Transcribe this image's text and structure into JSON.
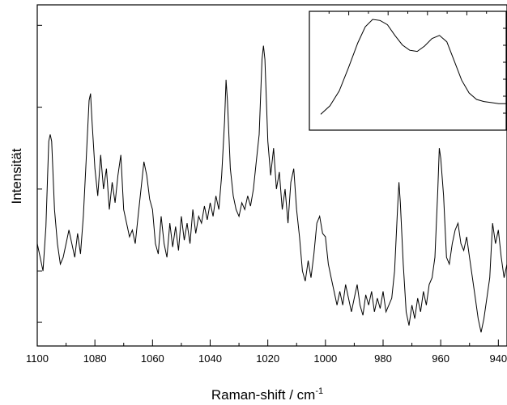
{
  "chart_data": [
    {
      "type": "line",
      "xlabel": "Raman-shift / cm",
      "xlabel_sup": "-1",
      "ylabel": "Intensität",
      "xlim": [
        1100,
        937
      ],
      "ylim": [
        0,
        100
      ],
      "x_reversed": true,
      "x_ticks": [
        "1100",
        "1080",
        "1060",
        "1040",
        "1020",
        "1000",
        "980",
        "960",
        "940"
      ],
      "y_ticks_unlabeled": [
        7,
        22,
        46,
        70,
        94
      ],
      "grid": false,
      "legend": "none",
      "series": [
        {
          "values": [
            [
              1100,
              30
            ],
            [
              1099,
              26
            ],
            [
              1098,
              22
            ],
            [
              1097,
              35
            ],
            [
              1096,
              60
            ],
            [
              1095.5,
              62
            ],
            [
              1095,
              60
            ],
            [
              1094,
              40
            ],
            [
              1093,
              30
            ],
            [
              1092,
              24
            ],
            [
              1091,
              26
            ],
            [
              1090,
              30
            ],
            [
              1089,
              34
            ],
            [
              1088,
              30
            ],
            [
              1087,
              26
            ],
            [
              1086,
              33
            ],
            [
              1085,
              27
            ],
            [
              1084,
              38
            ],
            [
              1083,
              55
            ],
            [
              1082,
              72
            ],
            [
              1081.5,
              74
            ],
            [
              1081,
              66
            ],
            [
              1080,
              52
            ],
            [
              1079,
              44
            ],
            [
              1078,
              56
            ],
            [
              1077,
              46
            ],
            [
              1076,
              52
            ],
            [
              1075,
              40
            ],
            [
              1074,
              48
            ],
            [
              1073,
              42
            ],
            [
              1072,
              50
            ],
            [
              1071,
              56
            ],
            [
              1070,
              40
            ],
            [
              1069,
              36
            ],
            [
              1068,
              32
            ],
            [
              1067,
              34
            ],
            [
              1066,
              30
            ],
            [
              1065,
              38
            ],
            [
              1064,
              46
            ],
            [
              1063,
              54
            ],
            [
              1062,
              50
            ],
            [
              1061,
              43
            ],
            [
              1060,
              40
            ],
            [
              1059,
              30
            ],
            [
              1058,
              27
            ],
            [
              1057,
              38
            ],
            [
              1056,
              30
            ],
            [
              1055,
              26
            ],
            [
              1054,
              36
            ],
            [
              1053,
              29
            ],
            [
              1052,
              35
            ],
            [
              1051,
              28
            ],
            [
              1050,
              38
            ],
            [
              1049,
              31
            ],
            [
              1048,
              36
            ],
            [
              1047,
              30
            ],
            [
              1046,
              40
            ],
            [
              1045,
              33
            ],
            [
              1044,
              38
            ],
            [
              1043,
              36
            ],
            [
              1042,
              41
            ],
            [
              1041,
              37
            ],
            [
              1040,
              42
            ],
            [
              1039,
              38
            ],
            [
              1038,
              44
            ],
            [
              1037,
              40
            ],
            [
              1036,
              50
            ],
            [
              1035,
              66
            ],
            [
              1034.5,
              78
            ],
            [
              1034,
              72
            ],
            [
              1033,
              52
            ],
            [
              1032,
              44
            ],
            [
              1031,
              40
            ],
            [
              1030,
              38
            ],
            [
              1029,
              42
            ],
            [
              1028,
              40
            ],
            [
              1027,
              44
            ],
            [
              1026,
              41
            ],
            [
              1025,
              46
            ],
            [
              1024,
              54
            ],
            [
              1023,
              62
            ],
            [
              1022,
              84
            ],
            [
              1021.5,
              88
            ],
            [
              1021,
              84
            ],
            [
              1020,
              60
            ],
            [
              1019,
              50
            ],
            [
              1018,
              58
            ],
            [
              1017,
              46
            ],
            [
              1016,
              51
            ],
            [
              1015,
              40
            ],
            [
              1014,
              46
            ],
            [
              1013,
              36
            ],
            [
              1012,
              48
            ],
            [
              1011,
              52
            ],
            [
              1010,
              40
            ],
            [
              1009,
              32
            ],
            [
              1008,
              22
            ],
            [
              1007,
              19
            ],
            [
              1006,
              25
            ],
            [
              1005,
              20
            ],
            [
              1004,
              27
            ],
            [
              1003,
              36
            ],
            [
              1002,
              38
            ],
            [
              1001,
              33
            ],
            [
              1000,
              32
            ],
            [
              999,
              24
            ],
            [
              998,
              20
            ],
            [
              997,
              16
            ],
            [
              996,
              12
            ],
            [
              995,
              16
            ],
            [
              994,
              12
            ],
            [
              993,
              18
            ],
            [
              992,
              14
            ],
            [
              991,
              10
            ],
            [
              990,
              14
            ],
            [
              989,
              18
            ],
            [
              988,
              12
            ],
            [
              987,
              9
            ],
            [
              986,
              15
            ],
            [
              985,
              12
            ],
            [
              984,
              16
            ],
            [
              983,
              10
            ],
            [
              982,
              14
            ],
            [
              981,
              11
            ],
            [
              980,
              16
            ],
            [
              979,
              10
            ],
            [
              978,
              12
            ],
            [
              977,
              14
            ],
            [
              976,
              22
            ],
            [
              975,
              40
            ],
            [
              974.5,
              48
            ],
            [
              974,
              42
            ],
            [
              973,
              24
            ],
            [
              972,
              10
            ],
            [
              971,
              6
            ],
            [
              970,
              12
            ],
            [
              969,
              8
            ],
            [
              968,
              14
            ],
            [
              967,
              10
            ],
            [
              966,
              16
            ],
            [
              965,
              12
            ],
            [
              964,
              18
            ],
            [
              963,
              20
            ],
            [
              962,
              26
            ],
            [
              961,
              46
            ],
            [
              960.5,
              58
            ],
            [
              960,
              55
            ],
            [
              959,
              44
            ],
            [
              958,
              26
            ],
            [
              957,
              24
            ],
            [
              956,
              30
            ],
            [
              955,
              34
            ],
            [
              954,
              36
            ],
            [
              953,
              30
            ],
            [
              952,
              28
            ],
            [
              951,
              32
            ],
            [
              950,
              26
            ],
            [
              949,
              20
            ],
            [
              948,
              14
            ],
            [
              947,
              8
            ],
            [
              946,
              4
            ],
            [
              945,
              8
            ],
            [
              944,
              14
            ],
            [
              943,
              20
            ],
            [
              942,
              36
            ],
            [
              941,
              30
            ],
            [
              940,
              34
            ],
            [
              939,
              26
            ],
            [
              938,
              20
            ],
            [
              937,
              24
            ]
          ]
        }
      ]
    },
    {
      "type": "line",
      "role": "inset",
      "xlim": [
        0,
        100
      ],
      "ylim": [
        0,
        100
      ],
      "axis_labels": "none",
      "series": [
        {
          "values": [
            [
              0,
              8
            ],
            [
              5,
              16
            ],
            [
              10,
              30
            ],
            [
              15,
              52
            ],
            [
              20,
              75
            ],
            [
              24,
              90
            ],
            [
              28,
              97
            ],
            [
              32,
              96
            ],
            [
              36,
              92
            ],
            [
              40,
              82
            ],
            [
              44,
              73
            ],
            [
              48,
              68
            ],
            [
              52,
              67
            ],
            [
              56,
              72
            ],
            [
              60,
              79
            ],
            [
              64,
              82
            ],
            [
              68,
              76
            ],
            [
              72,
              58
            ],
            [
              76,
              40
            ],
            [
              80,
              28
            ],
            [
              84,
              22
            ],
            [
              88,
              20
            ],
            [
              92,
              19
            ],
            [
              96,
              18
            ],
            [
              100,
              18
            ]
          ]
        }
      ]
    }
  ]
}
